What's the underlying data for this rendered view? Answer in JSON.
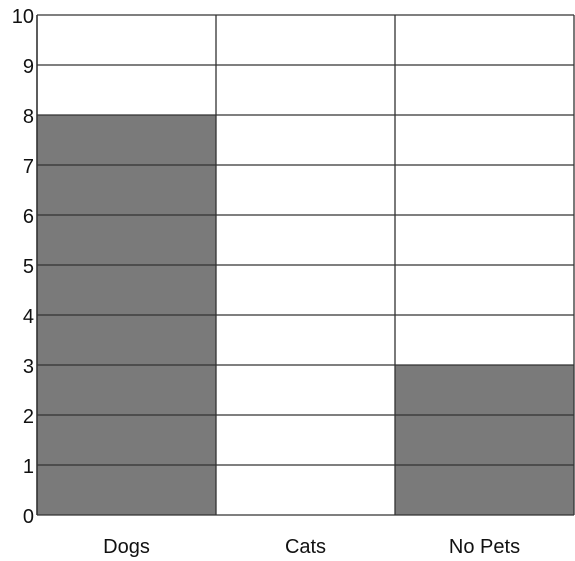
{
  "chart_data": {
    "type": "bar",
    "categories": [
      "Dogs",
      "Cats",
      "No Pets"
    ],
    "values": [
      8,
      0,
      3
    ],
    "title": "",
    "xlabel": "",
    "ylabel": "",
    "ylim": [
      0,
      10
    ],
    "yticks": [
      0,
      1,
      2,
      3,
      4,
      5,
      6,
      7,
      8,
      9,
      10
    ],
    "grid": true,
    "bar_color": "#7a7a7a",
    "line_color": "#333333",
    "background": "#ffffff"
  }
}
